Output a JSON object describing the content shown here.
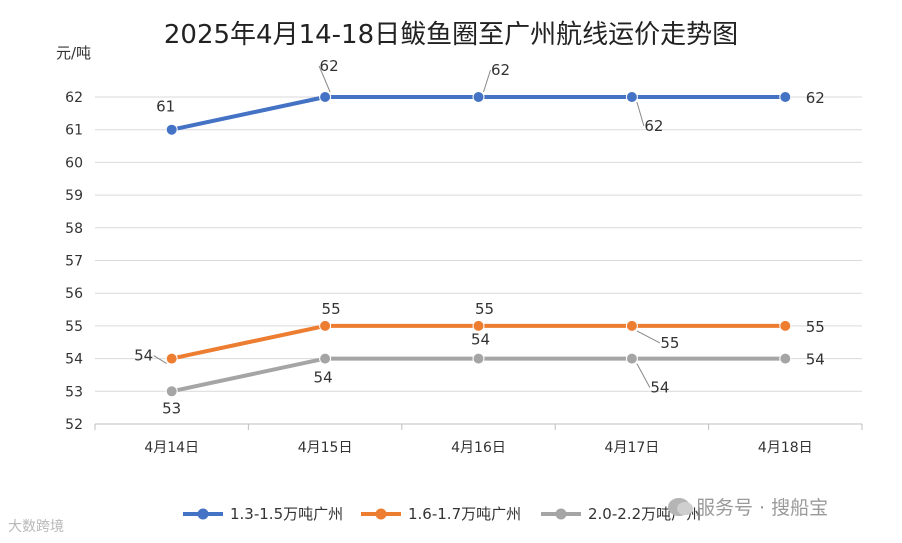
{
  "chart_data": {
    "type": "line",
    "title": "2025年4月14-18日鲅鱼圈至广州航线运价走势图",
    "ylabel": "元/吨",
    "categories": [
      "4月14日",
      "4月15日",
      "4月16日",
      "4月17日",
      "4月18日"
    ],
    "ylim": [
      52,
      62
    ],
    "yticks": [
      52,
      53,
      54,
      55,
      56,
      57,
      58,
      59,
      60,
      61,
      62
    ],
    "grid": true,
    "legend": "bottom",
    "series": [
      {
        "name": "1.3-1.5万吨广州",
        "color": "#4472c4",
        "values": [
          61,
          62,
          62,
          62,
          62
        ]
      },
      {
        "name": "1.6-1.7万吨广州",
        "color": "#ed7d31",
        "values": [
          54,
          55,
          55,
          55,
          55
        ]
      },
      {
        "name": "2.0-2.2万吨广州",
        "color": "#a5a5a5",
        "values": [
          53,
          54,
          54,
          54,
          54
        ]
      }
    ]
  },
  "watermarks": {
    "left": "大数跨境",
    "right": "服务号 · 搜船宝"
  }
}
